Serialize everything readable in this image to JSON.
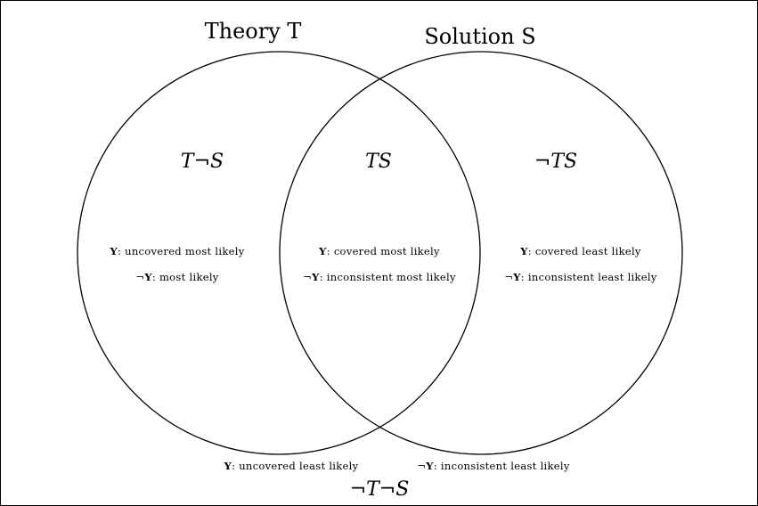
{
  "theory_title": "Theory T",
  "solution_title": "Solution S",
  "regions": {
    "t_not_s": "T¬S",
    "ts": "TS",
    "not_t_s": "¬TS",
    "not_t_not_s": "¬T¬S"
  },
  "notes": {
    "t_not_s_y": "Y: uncovered most likely",
    "t_not_s_not_y": "¬Y: most likely",
    "ts_y": "Y: covered most likely",
    "ts_not_y": "¬Y: inconsistent most likely",
    "not_t_s_y": "Y: covered least likely",
    "not_t_s_not_y": "¬Y: inconsistent least likely",
    "outside_y": "Y: uncovered least likely",
    "outside_not_y": "¬Y: inconsistent least likely"
  }
}
